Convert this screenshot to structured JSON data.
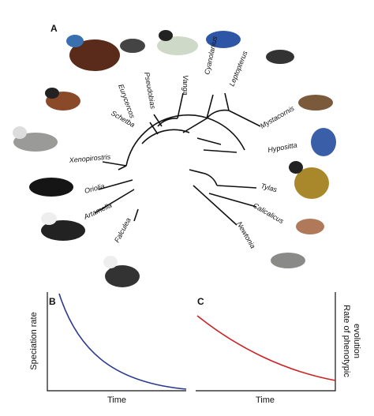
{
  "panels": {
    "A": {
      "label": "A",
      "genera": [
        "Eurycercos",
        "Pseudobias",
        "Vanga",
        "Cyanolanius",
        "Leptopterus",
        "Schetba",
        "Mystacornis",
        "Hypositta",
        "Xenopirostris",
        "Tylas",
        "Oriolia",
        "Calicalicus",
        "Artamella",
        "Newtonia",
        "Falculea"
      ]
    },
    "B": {
      "label": "B",
      "y_label": "Speciation rate",
      "x_label": "Time"
    },
    "C": {
      "label": "C",
      "y_label_lines": [
        "Rate of phenotypic",
        "evolution"
      ],
      "x_label": "Time"
    }
  }
}
